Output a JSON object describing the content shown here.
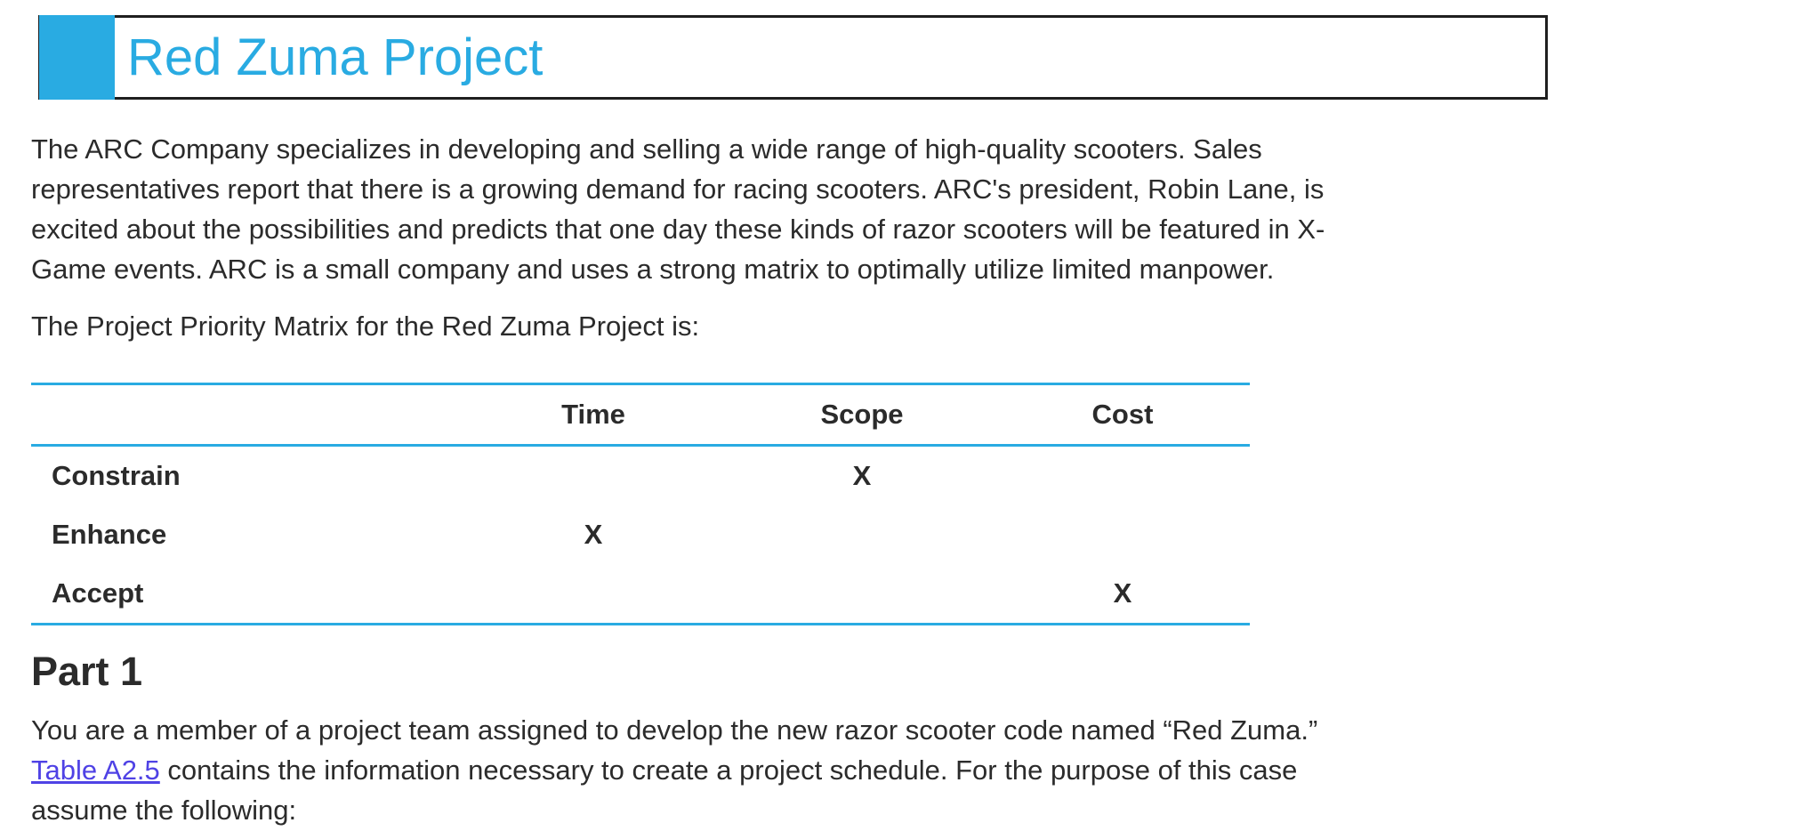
{
  "header": {
    "title": "Red Zuma Project",
    "accent_color": "#29abe2",
    "border_color": "#1f1f1f"
  },
  "intro": {
    "lines": [
      "The ARC Company specializes in developing and selling a wide range of high-quality scooters. Sales",
      "representatives report that there is a growing demand for racing scooters. ARC's president, Robin Lane, is",
      "excited about the possibilities and predicts that one day these kinds of razor scooters will be featured in X-",
      "Game events. ARC is a small company and uses a strong matrix to optimally utilize limited manpower."
    ]
  },
  "matrix_intro": "The Project Priority Matrix for the Red Zuma Project is:",
  "priority_matrix": {
    "columns": [
      "Time",
      "Scope",
      "Cost"
    ],
    "rows": [
      {
        "label": "Constrain",
        "cells": [
          "",
          "X",
          ""
        ]
      },
      {
        "label": "Enhance",
        "cells": [
          "X",
          "",
          ""
        ]
      },
      {
        "label": "Accept",
        "cells": [
          "",
          "",
          "X"
        ]
      }
    ],
    "line_color": "#29abe2"
  },
  "part1": {
    "heading": "Part 1",
    "line1": "You are a member of a project team assigned to develop the new razor scooter code named “Red Zuma.”",
    "link_text": "Table A2.5",
    "line2_rest": " contains the information necessary to create a project schedule. For the purpose of this case",
    "line3": "assume the following:",
    "link_color": "#4f42e5"
  }
}
